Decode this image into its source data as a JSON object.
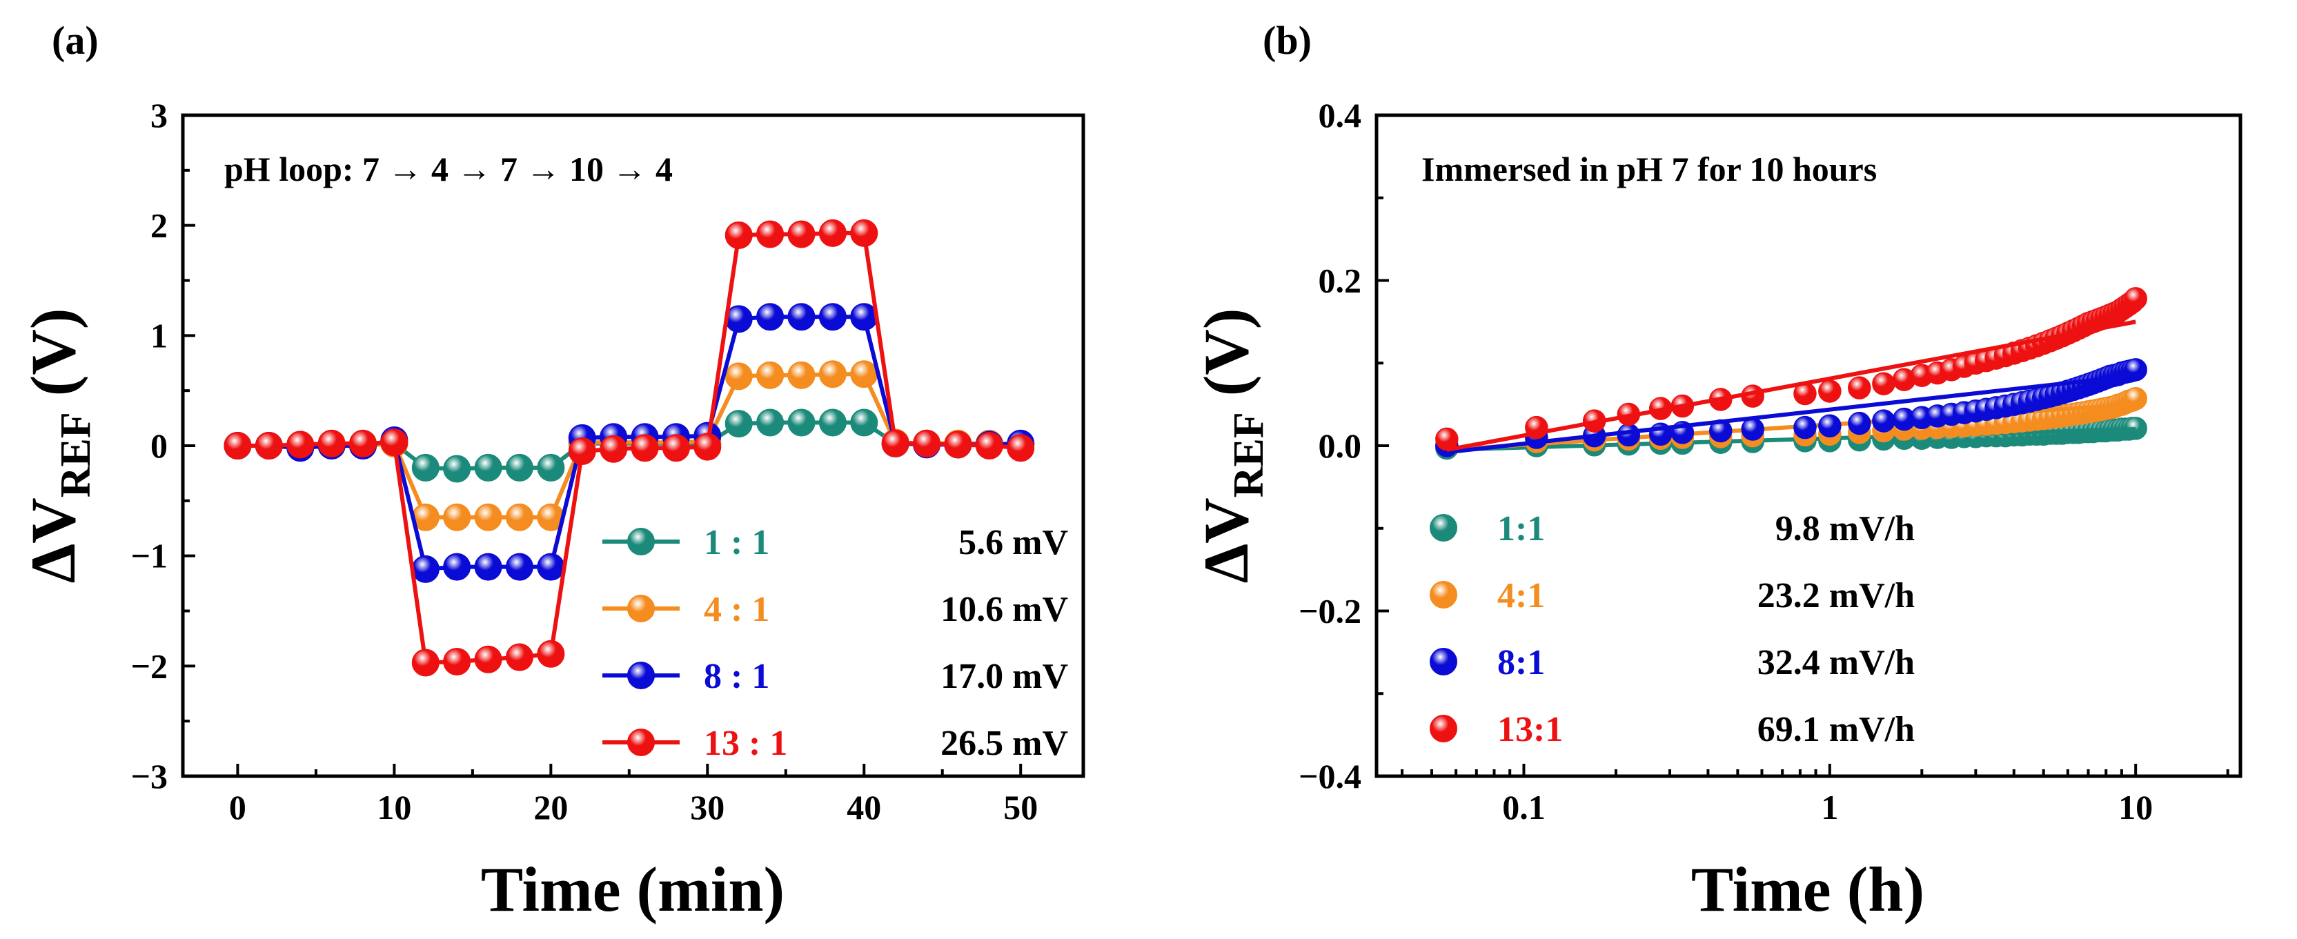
{
  "figure": {
    "panel_a_label": "(a)",
    "panel_b_label": "(b)"
  },
  "chart_data": [
    {
      "type": "line",
      "panel": "(a)",
      "title": "",
      "annotation": "pH loop: 7 → 4 → 7 → 10 → 4",
      "xlabel": "Time (min)",
      "ylabel_main": "ΔV",
      "ylabel_sub": "REF",
      "ylabel_unit": " (V)",
      "xlim": [
        -3.5,
        54
      ],
      "ylim": [
        -3,
        3
      ],
      "xticks": [
        0,
        10,
        20,
        30,
        40,
        50
      ],
      "yticks": [
        -3,
        -2,
        -1,
        0,
        1,
        2,
        3
      ],
      "ytick_labels": [
        "−3",
        "−2",
        "−1",
        "0",
        "1",
        "2",
        "3"
      ],
      "x": [
        0,
        2,
        4,
        6,
        8,
        10,
        12,
        14,
        16,
        18,
        20,
        22,
        24,
        26,
        28,
        30,
        32,
        34,
        36,
        38,
        40,
        42,
        44,
        46,
        48,
        50
      ],
      "legend_position": "lower-right",
      "series": [
        {
          "name": "1 : 1",
          "value_label": "5.6 mV",
          "color": "#1b8a7a",
          "values": [
            0,
            0,
            0,
            0,
            0,
            0.02,
            -0.2,
            -0.21,
            -0.2,
            -0.2,
            -0.2,
            0.02,
            0.02,
            0.02,
            0.02,
            0.02,
            0.2,
            0.21,
            0.21,
            0.21,
            0.21,
            0.02,
            0.02,
            0.01,
            0.01,
            0.01
          ]
        },
        {
          "name": "4 : 1",
          "value_label": "10.6 mV",
          "color": "#f48c1f",
          "values": [
            0,
            0,
            0,
            0,
            0,
            0.02,
            -0.65,
            -0.65,
            -0.65,
            -0.65,
            -0.65,
            0.03,
            0.03,
            0.03,
            0.03,
            0.04,
            0.63,
            0.64,
            0.64,
            0.65,
            0.65,
            0.03,
            0.02,
            0.02,
            0.02,
            0.01
          ]
        },
        {
          "name": "8 : 1",
          "value_label": "17.0 mV",
          "color": "#0b0bd6",
          "values": [
            0,
            0,
            -0.02,
            0,
            0,
            0.05,
            -1.12,
            -1.1,
            -1.1,
            -1.1,
            -1.1,
            0.07,
            0.08,
            0.08,
            0.08,
            0.09,
            1.15,
            1.17,
            1.17,
            1.17,
            1.17,
            0.02,
            0.01,
            0.01,
            0.01,
            0.02
          ]
        },
        {
          "name": "13 : 1",
          "value_label": "26.5 mV",
          "color": "#ee1111",
          "values": [
            0,
            0,
            0.01,
            0.02,
            0.02,
            0.03,
            -1.97,
            -1.96,
            -1.94,
            -1.92,
            -1.89,
            -0.05,
            -0.03,
            -0.02,
            -0.02,
            -0.01,
            1.91,
            1.92,
            1.92,
            1.93,
            1.93,
            0.02,
            0.02,
            0.01,
            0.0,
            -0.02
          ]
        }
      ]
    },
    {
      "type": "scatter",
      "panel": "(b)",
      "title": "",
      "annotation": "Immersed in pH 7 for 10 hours",
      "xlabel": "Time (h)",
      "ylabel_main": "ΔV",
      "ylabel_sub": "REF",
      "ylabel_unit": " (V)",
      "xscale": "log",
      "xlim": [
        0.033,
        22
      ],
      "ylim": [
        -0.4,
        0.4
      ],
      "xticks": [
        0.1,
        1,
        10
      ],
      "xtick_labels": [
        "0.1",
        "1",
        "10"
      ],
      "yticks": [
        -0.4,
        -0.2,
        0.0,
        0.2,
        0.4
      ],
      "ytick_labels": [
        "−0.4",
        "−0.2",
        "0.0",
        "0.2",
        "0.4"
      ],
      "x": [
        0.056,
        0.11,
        0.17,
        0.22,
        0.28,
        0.33,
        0.44,
        0.56,
        0.83,
        1.0,
        1.25,
        1.5,
        1.75,
        2.0,
        2.25,
        2.5,
        2.75,
        3.0,
        3.25,
        3.5,
        3.75,
        4.0,
        4.25,
        4.5,
        4.75,
        5.0,
        5.25,
        5.5,
        5.75,
        6.0,
        6.25,
        6.5,
        6.75,
        7.0,
        7.25,
        7.5,
        7.75,
        8.0,
        8.25,
        8.5,
        8.75,
        9.0,
        9.25,
        9.5,
        9.75,
        10.0
      ],
      "legend_position": "lower-left",
      "series": [
        {
          "name": "1:1",
          "value_label": "9.8 mV/h",
          "color": "#1b8a7a",
          "fit": [
            [
              0.056,
              -0.005
            ],
            [
              10,
              0.02
            ]
          ],
          "values": [
            -0.003,
            0.0,
            0.001,
            0.002,
            0.003,
            0.003,
            0.004,
            0.005,
            0.006,
            0.006,
            0.007,
            0.008,
            0.009,
            0.009,
            0.01,
            0.01,
            0.011,
            0.011,
            0.012,
            0.012,
            0.012,
            0.013,
            0.013,
            0.014,
            0.014,
            0.014,
            0.015,
            0.015,
            0.015,
            0.016,
            0.016,
            0.016,
            0.017,
            0.017,
            0.017,
            0.018,
            0.018,
            0.018,
            0.019,
            0.019,
            0.019,
            0.02,
            0.02,
            0.02,
            0.021,
            0.021
          ]
        },
        {
          "name": "4:1",
          "value_label": "23.2 mV/h",
          "color": "#f48c1f",
          "fit": [
            [
              0.056,
              -0.005
            ],
            [
              10,
              0.05
            ]
          ],
          "values": [
            0.0,
            0.005,
            0.007,
            0.008,
            0.009,
            0.01,
            0.011,
            0.012,
            0.013,
            0.014,
            0.016,
            0.018,
            0.02,
            0.021,
            0.022,
            0.023,
            0.024,
            0.025,
            0.026,
            0.027,
            0.028,
            0.029,
            0.03,
            0.031,
            0.032,
            0.033,
            0.034,
            0.035,
            0.036,
            0.037,
            0.038,
            0.039,
            0.04,
            0.041,
            0.042,
            0.043,
            0.044,
            0.045,
            0.046,
            0.047,
            0.049,
            0.05,
            0.052,
            0.054,
            0.055,
            0.057
          ]
        },
        {
          "name": "8:1",
          "value_label": "32.4 mV/h",
          "color": "#0b0bd6",
          "fit": [
            [
              0.056,
              -0.008
            ],
            [
              10,
              0.085
            ]
          ],
          "values": [
            0.0,
            0.01,
            0.012,
            0.013,
            0.014,
            0.016,
            0.018,
            0.02,
            0.022,
            0.024,
            0.027,
            0.03,
            0.032,
            0.034,
            0.036,
            0.038,
            0.04,
            0.042,
            0.044,
            0.046,
            0.048,
            0.05,
            0.052,
            0.054,
            0.056,
            0.058,
            0.06,
            0.062,
            0.064,
            0.066,
            0.068,
            0.07,
            0.072,
            0.074,
            0.076,
            0.078,
            0.08,
            0.082,
            0.084,
            0.085,
            0.086,
            0.088,
            0.089,
            0.09,
            0.091,
            0.092
          ]
        },
        {
          "name": "13:1",
          "value_label": "69.1 mV/h",
          "color": "#ee1111",
          "fit": [
            [
              0.056,
              -0.005
            ],
            [
              10,
              0.15
            ]
          ],
          "values": [
            0.008,
            0.022,
            0.03,
            0.038,
            0.045,
            0.048,
            0.056,
            0.06,
            0.063,
            0.066,
            0.07,
            0.075,
            0.08,
            0.085,
            0.088,
            0.092,
            0.096,
            0.1,
            0.103,
            0.106,
            0.109,
            0.112,
            0.115,
            0.118,
            0.121,
            0.124,
            0.127,
            0.13,
            0.133,
            0.136,
            0.139,
            0.142,
            0.145,
            0.148,
            0.15,
            0.152,
            0.154,
            0.156,
            0.158,
            0.16,
            0.162,
            0.165,
            0.168,
            0.171,
            0.174,
            0.178
          ]
        }
      ]
    }
  ]
}
